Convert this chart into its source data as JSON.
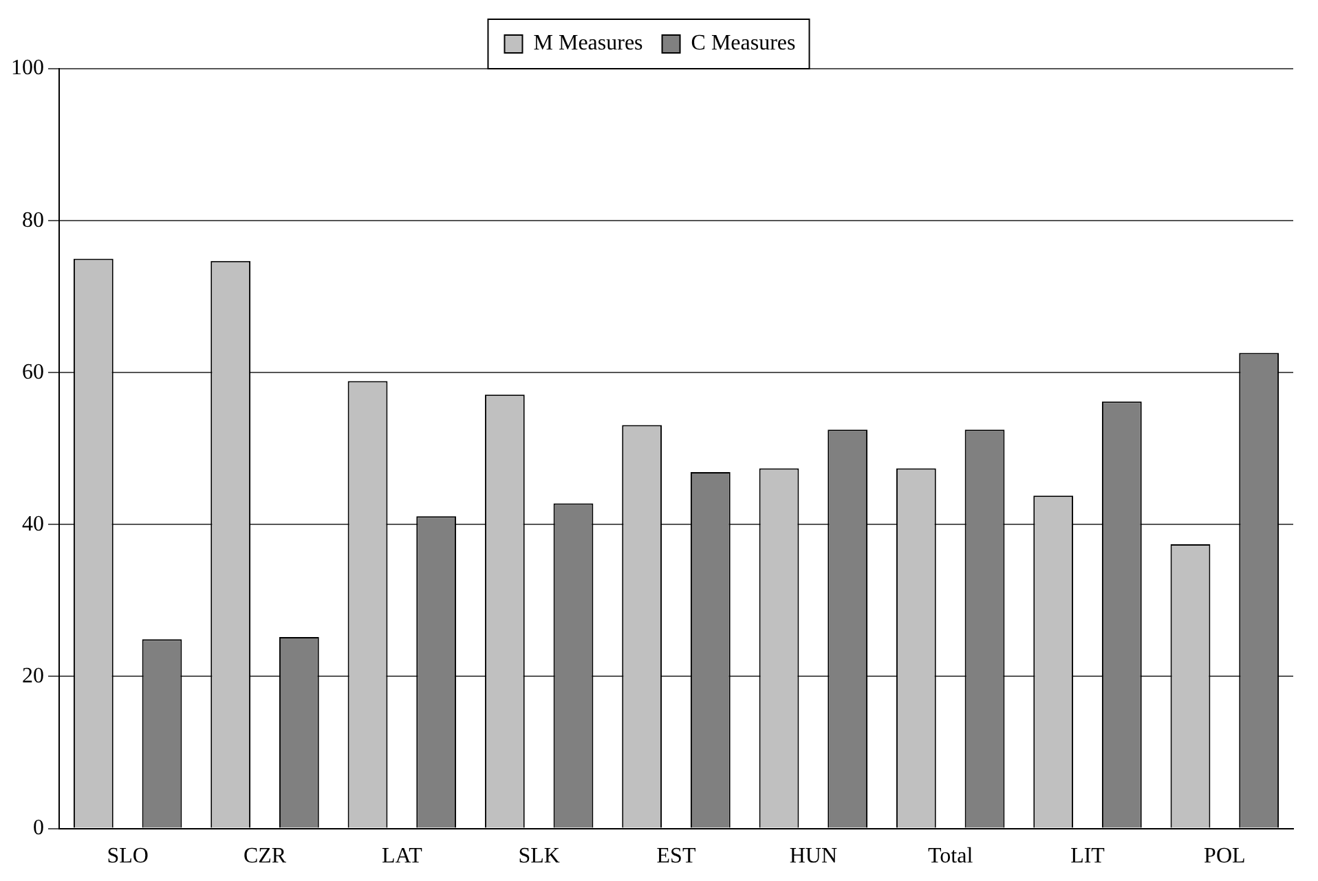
{
  "chart_data": {
    "type": "bar",
    "categories": [
      "SLO",
      "CZR",
      "LAT",
      "SLK",
      "EST",
      "HUN",
      "Total",
      "LIT",
      "POL"
    ],
    "series": [
      {
        "name": "M Measures",
        "color": "#c0c0c0",
        "values": [
          75.0,
          74.7,
          58.9,
          57.1,
          53.1,
          47.4,
          47.4,
          43.8,
          37.4
        ]
      },
      {
        "name": "C Measures",
        "color": "#808080",
        "values": [
          24.9,
          25.2,
          41.1,
          42.8,
          46.9,
          52.5,
          52.5,
          56.2,
          62.6
        ]
      }
    ],
    "ylim": [
      0,
      100
    ],
    "yticks": [
      0,
      20,
      40,
      60,
      80,
      100
    ],
    "grid": "y",
    "legend": "top"
  }
}
